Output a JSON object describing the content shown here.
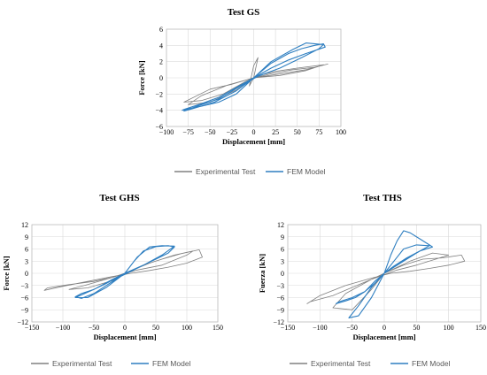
{
  "colors": {
    "experimental": "#808080",
    "fem": "#2f7fc1",
    "grid": "#d9d9d9",
    "frame": "#bfbfbf"
  },
  "chart_data": [
    {
      "type": "line",
      "title": "Test GS",
      "xlabel": "Displacement [mm]",
      "ylabel": "Force [kN]",
      "xlim": [
        -100,
        100
      ],
      "ylim": [
        -6,
        6
      ],
      "xticks": [
        "−100",
        "−75",
        "−50",
        "−25",
        "0",
        "25",
        "50",
        "75",
        "100"
      ],
      "yticks": [
        "6",
        "4",
        "2",
        "0",
        "−2",
        "−4",
        "−6"
      ],
      "grid": true,
      "legend_position": "bottom",
      "series": [
        {
          "name": "Experimental Test",
          "x": [
            0,
            10,
            25,
            50,
            80,
            60,
            30,
            0,
            -25,
            -50,
            -80,
            -60,
            -35,
            -10,
            0,
            20,
            45,
            70,
            85,
            60,
            25,
            0,
            -30,
            -60,
            -75,
            -50,
            -20,
            0,
            5,
            0,
            -5,
            0
          ],
          "y": [
            0,
            0.4,
            0.8,
            1.2,
            1.6,
            0.9,
            0.3,
            0,
            -0.8,
            -1.4,
            -3.0,
            -2.8,
            -2.0,
            -0.5,
            0,
            0.5,
            1.0,
            1.3,
            1.7,
            1.0,
            0.4,
            0,
            -0.9,
            -2.2,
            -3.3,
            -3.0,
            -1.5,
            0,
            2.5,
            1.5,
            -1.0,
            0
          ]
        },
        {
          "name": "FEM Model",
          "x": [
            0,
            20,
            40,
            55,
            70,
            80,
            82,
            60,
            40,
            20,
            0,
            -20,
            -40,
            -60,
            -80,
            -82,
            -60,
            -40,
            -20,
            0,
            20,
            45,
            60,
            80,
            75,
            55,
            30,
            5,
            -15,
            -40,
            -65,
            -80,
            -70,
            -45,
            -20,
            0
          ],
          "y": [
            0,
            1.8,
            3.0,
            3.6,
            4.0,
            4.2,
            3.8,
            3.0,
            2.2,
            1.2,
            0,
            -1.2,
            -2.4,
            -3.2,
            -3.9,
            -4.0,
            -3.5,
            -3.0,
            -2.0,
            0,
            2.0,
            3.5,
            4.3,
            4.1,
            3.6,
            2.5,
            1.2,
            0.2,
            -1.0,
            -2.6,
            -3.5,
            -4.1,
            -3.8,
            -3.0,
            -1.6,
            0
          ]
        }
      ]
    },
    {
      "type": "line",
      "title": "Test GHS",
      "xlabel": "Displacement [mm]",
      "ylabel": "Force [kN]",
      "xlim": [
        -150,
        150
      ],
      "ylim": [
        -12,
        12
      ],
      "xticks": [
        "−150",
        "−100",
        "−50",
        "0",
        "50",
        "100",
        "150"
      ],
      "yticks": [
        "12",
        "9",
        "6",
        "3",
        "0",
        "−3",
        "−6",
        "−9",
        "−12"
      ],
      "grid": true,
      "legend_position": "bottom",
      "series": [
        {
          "name": "Experimental Test",
          "x": [
            0,
            30,
            60,
            90,
            120,
            125,
            100,
            70,
            40,
            10,
            -20,
            -60,
            -100,
            -130,
            -125,
            -90,
            -50,
            -20,
            0,
            40,
            80,
            110,
            100,
            60,
            20,
            -20,
            -60,
            -90,
            -60,
            -20,
            0
          ],
          "y": [
            0,
            2.0,
            3.5,
            4.8,
            5.8,
            4.0,
            2.5,
            1.5,
            0.7,
            0,
            -0.8,
            -2.0,
            -3.2,
            -4.2,
            -3.6,
            -2.8,
            -2.0,
            -1.0,
            0,
            2.5,
            4.5,
            5.5,
            4.5,
            2.0,
            0.8,
            -1.0,
            -2.8,
            -4.0,
            -3.6,
            -1.8,
            0
          ]
        },
        {
          "name": "FEM Model",
          "x": [
            0,
            15,
            30,
            50,
            70,
            80,
            70,
            50,
            30,
            10,
            -10,
            -30,
            -50,
            -70,
            -80,
            -70,
            -50,
            -30,
            -10,
            0,
            20,
            40,
            60,
            80,
            60,
            30,
            0,
            -30,
            -60,
            -80,
            -50,
            -20,
            0
          ],
          "y": [
            0,
            3.0,
            5.5,
            6.6,
            6.8,
            6.5,
            5.0,
            3.5,
            2.0,
            0.5,
            -1.0,
            -3.0,
            -5.0,
            -6.2,
            -5.8,
            -5.0,
            -4.0,
            -2.5,
            -0.8,
            0,
            4.0,
            6.5,
            6.8,
            6.7,
            4.5,
            2.0,
            0,
            -3.5,
            -6.0,
            -6.0,
            -4.0,
            -1.5,
            0
          ]
        }
      ]
    },
    {
      "type": "line",
      "title": "Test THS",
      "xlabel": "Displacement [mm]",
      "ylabel": "Fuerza [kN]",
      "xlim": [
        -150,
        150
      ],
      "ylim": [
        -12,
        12
      ],
      "xticks": [
        "−150",
        "−100",
        "−50",
        "0",
        "50",
        "100",
        "150"
      ],
      "yticks": [
        "12",
        "9",
        "6",
        "3",
        "0",
        "−3",
        "−6",
        "−9",
        "−12"
      ],
      "grid": true,
      "legend_position": "bottom",
      "series": [
        {
          "name": "Experimental Test",
          "x": [
            0,
            30,
            60,
            90,
            120,
            125,
            100,
            70,
            40,
            10,
            -20,
            -60,
            -100,
            -120,
            -115,
            -80,
            -50,
            -20,
            0,
            40,
            75,
            100,
            80,
            50,
            20,
            -20,
            -60,
            -80,
            -50,
            -20,
            0
          ],
          "y": [
            0,
            2.0,
            3.5,
            3.8,
            4.5,
            3.0,
            2.0,
            1.2,
            0.5,
            0,
            -1.2,
            -3.0,
            -5.5,
            -7.5,
            -7.0,
            -5.5,
            -3.5,
            -1.5,
            0,
            3.0,
            5.0,
            4.5,
            3.5,
            2.0,
            0.8,
            -1.5,
            -5.0,
            -8.5,
            -9.0,
            -4.0,
            0
          ]
        },
        {
          "name": "FEM Model",
          "x": [
            0,
            10,
            20,
            30,
            40,
            55,
            70,
            75,
            55,
            35,
            15,
            0,
            -15,
            -30,
            -45,
            -60,
            -75,
            -70,
            -50,
            -30,
            -15,
            0,
            15,
            30,
            50,
            70,
            50,
            25,
            0,
            -20,
            -40,
            -55,
            -40,
            -20,
            0
          ],
          "y": [
            0,
            4.5,
            8.0,
            10.5,
            10.0,
            8.5,
            7.0,
            6.5,
            5.5,
            3.8,
            1.8,
            0,
            -2.0,
            -4.5,
            -6.0,
            -6.8,
            -7.5,
            -7.0,
            -6.0,
            -4.5,
            -2.5,
            0,
            3.0,
            6.0,
            7.0,
            6.8,
            5.0,
            2.5,
            0,
            -6.0,
            -10.5,
            -11.0,
            -8.0,
            -3.5,
            0
          ]
        }
      ]
    }
  ]
}
